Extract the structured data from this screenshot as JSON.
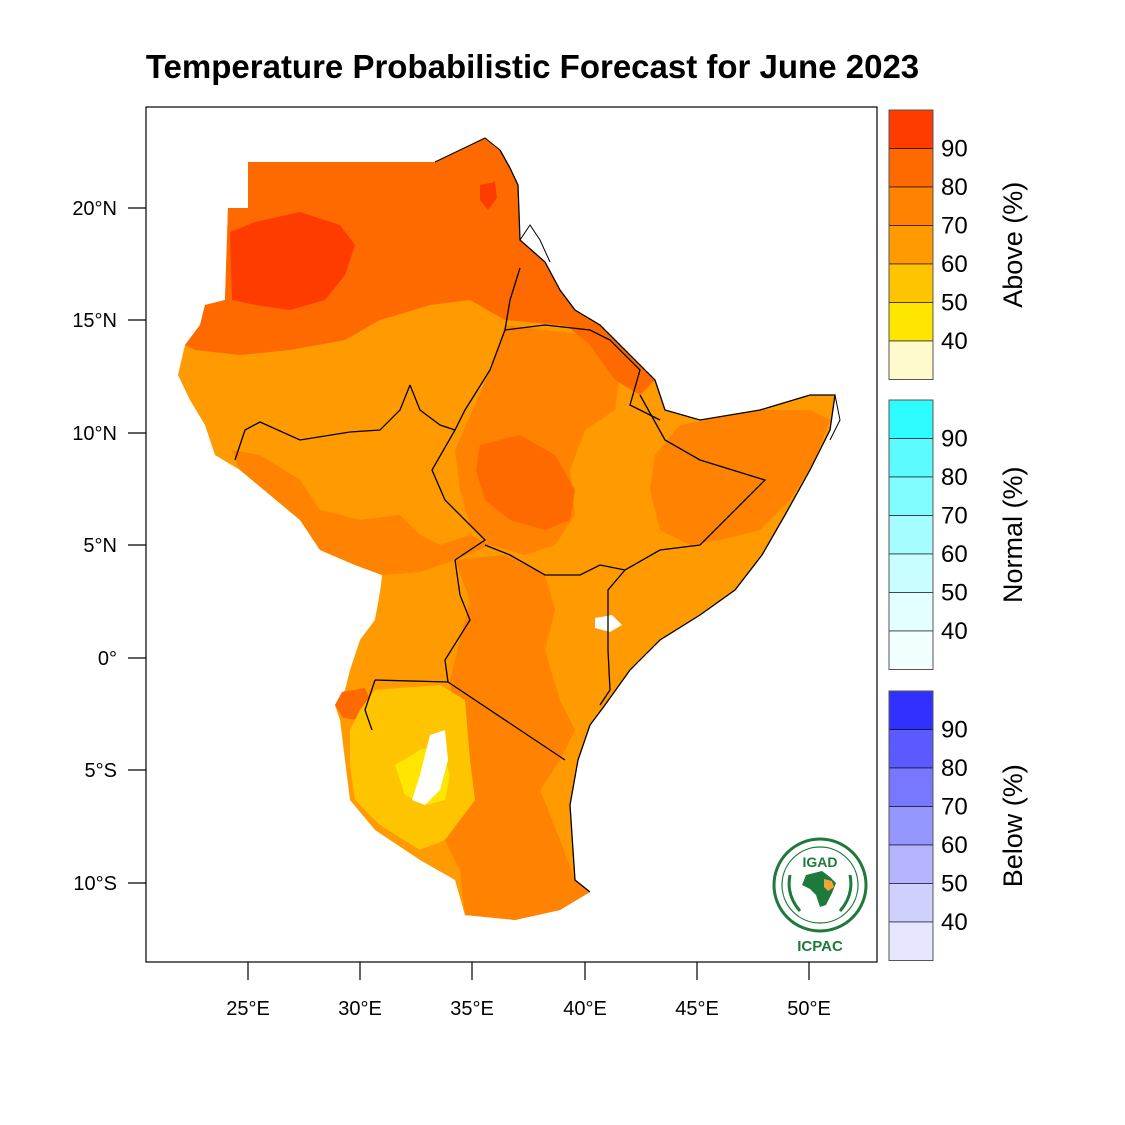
{
  "title": "Temperature Probabilistic Forecast for June 2023",
  "axes": {
    "lat_ticks": [
      "20°N",
      "15°N",
      "10°N",
      "5°N",
      "0°",
      "5°S",
      "10°S"
    ],
    "lon_ticks": [
      "25°E",
      "30°E",
      "35°E",
      "40°E",
      "45°E",
      "50°E"
    ]
  },
  "colorbars": [
    {
      "id": "above",
      "title": "Above (%)",
      "labels": [
        "90",
        "80",
        "70",
        "60",
        "50",
        "40"
      ],
      "colors": [
        "#ff3c00",
        "#ff6a00",
        "#ff8200",
        "#ff9a00",
        "#ffc400",
        "#ffe600",
        "#fffacc"
      ]
    },
    {
      "id": "normal",
      "title": "Normal (%)",
      "labels": [
        "90",
        "80",
        "70",
        "60",
        "50",
        "40"
      ],
      "colors": [
        "#2efbff",
        "#5cfbff",
        "#80fcff",
        "#a6fdff",
        "#c8fefe",
        "#e3ffff",
        "#f2ffff"
      ]
    },
    {
      "id": "below",
      "title": "Below (%)",
      "labels": [
        "90",
        "80",
        "70",
        "60",
        "50",
        "40"
      ],
      "colors": [
        "#3030ff",
        "#5a5aff",
        "#7878ff",
        "#9696ff",
        "#b4b4ff",
        "#d0d0ff",
        "#e6e6ff"
      ]
    }
  ],
  "logo": {
    "top_text": "IGAD",
    "bottom_text": "ICPAC"
  },
  "map_colors": {
    "c90": "#ff3c00",
    "c80": "#ff6a00",
    "c70": "#ff8200",
    "c60": "#ff9a00",
    "c50": "#ffc400",
    "c40": "#ffe600",
    "white": "#ffffff"
  }
}
